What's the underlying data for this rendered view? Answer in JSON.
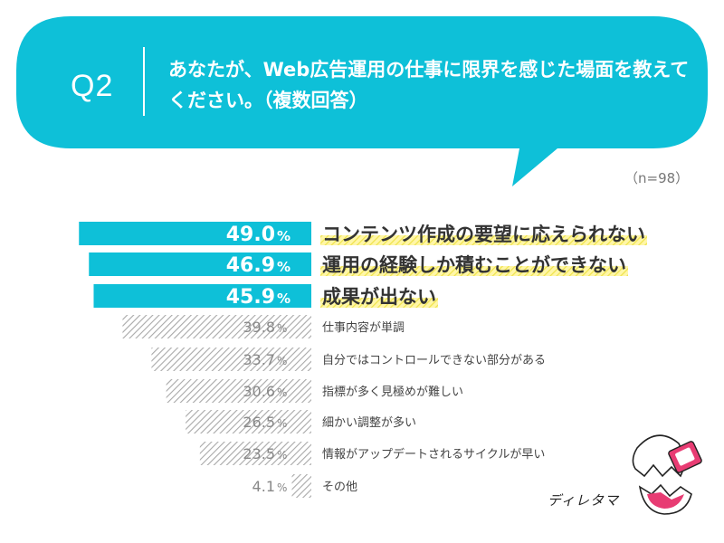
{
  "header": {
    "question_label": "Q2",
    "question_text": "あなたが、Web広告運用の仕事に限界を感じた場面を教えてください。（複数回答）",
    "sample_size": "（n=98）"
  },
  "logo": {
    "text": "ディレタマ"
  },
  "colors": {
    "bubble": "#0ec0d8",
    "highlight_bar": "#0ec0d8",
    "hatch_bar": "#b9b9b9",
    "underline": "#f2e84a",
    "muted_text": "#888888"
  },
  "chart_data": {
    "type": "bar",
    "orientation": "horizontal",
    "unit": "%",
    "categories": [
      "コンテンツ作成の要望に応えられない",
      "運用の経験しか積むことができない",
      "成果が出ない",
      "仕事内容が単調",
      "自分ではコントロールできない部分がある",
      "指標が多く見極めが難しい",
      "細かい調整が多い",
      "情報がアップデートされるサイクルが早い",
      "その他"
    ],
    "values": [
      49.0,
      46.9,
      45.9,
      39.8,
      33.7,
      30.6,
      26.5,
      23.5,
      4.1
    ],
    "value_labels": [
      "49.0",
      "46.9",
      "45.9",
      "39.8",
      "33.7",
      "30.6",
      "26.5",
      "23.5",
      "4.1"
    ],
    "highlighted_count": 3,
    "xlim": [
      0,
      50
    ]
  }
}
